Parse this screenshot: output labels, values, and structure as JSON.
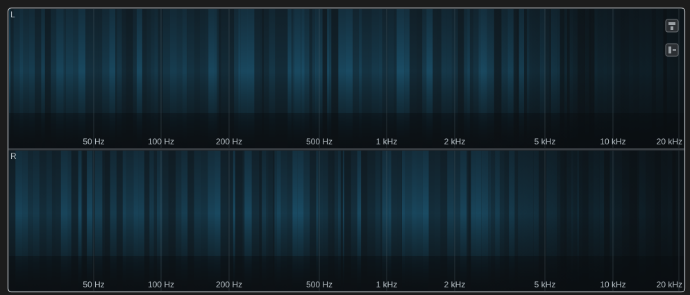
{
  "panels": [
    {
      "channel": "L",
      "freq_labels": [
        "50 Hz",
        "100 Hz",
        "200 Hz",
        "500 Hz",
        "1 kHz",
        "2 kHz",
        "5 kHz",
        "10 kHz",
        "20 kHz"
      ]
    },
    {
      "channel": "R",
      "freq_labels": [
        "50 Hz",
        "100 Hz",
        "200 Hz",
        "500 Hz",
        "1 kHz",
        "2 kHz",
        "5 kHz",
        "10 kHz",
        "20 kHz"
      ]
    }
  ]
}
